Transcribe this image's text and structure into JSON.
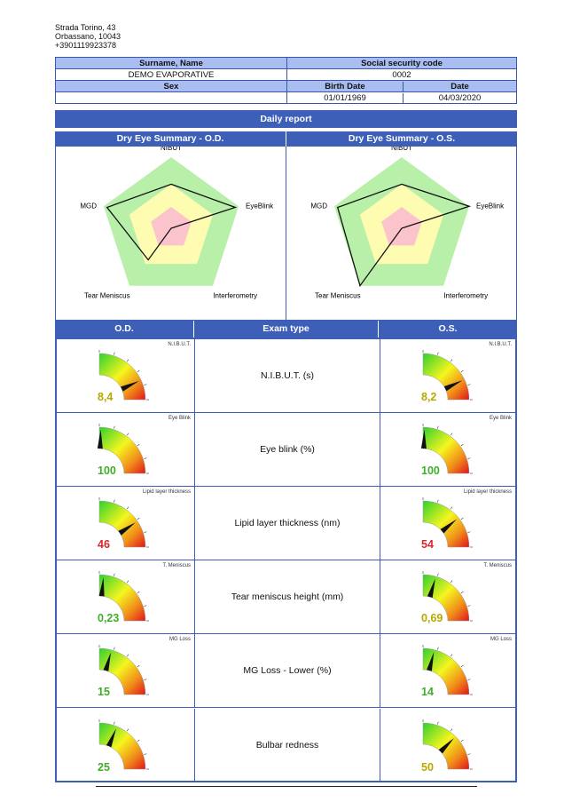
{
  "address": {
    "street": "Strada Torino, 43",
    "city": "Orbassano, 10043",
    "phone": "+3901119923378"
  },
  "patient": {
    "surname_header": "Surname, Name",
    "ssc_header": "Social security code",
    "surname_value": "DEMO EVAPORATIVE",
    "ssc_value": "0002",
    "sex_header": "Sex",
    "birth_header": "Birth Date",
    "date_header": "Date",
    "sex_value": "",
    "birth_value": "01/01/1969",
    "date_value": "04/03/2020"
  },
  "report_title": "Daily report",
  "summary": {
    "od_title": "Dry Eye Summary - O.D.",
    "os_title": "Dry Eye Summary - O.S.",
    "axes": [
      "NIBUT",
      "EyeBlink",
      "Interferometry",
      "Tear Meniscus",
      "MGD"
    ],
    "zone_colors": [
      "#b9f0a9",
      "#fdfcb0",
      "#fbc4cc"
    ],
    "od_values": [
      0.62,
      0.95,
      0.0,
      0.55,
      0.95
    ],
    "os_values": [
      0.62,
      1.0,
      0.0,
      1.0,
      0.95
    ]
  },
  "exam_table": {
    "od_header": "O.D.",
    "type_header": "Exam type",
    "os_header": "O.S.",
    "rows": [
      {
        "label": "N.I.B.U.T. (s)",
        "gauge_title": "N.I.B.U.T.",
        "od_value": "8,4",
        "os_value": "8,2",
        "od_color": "#b7a800",
        "os_color": "#b7a800",
        "od_level": 0.72,
        "os_level": 0.71
      },
      {
        "label": "Eye blink (%)",
        "gauge_title": "Eye Blink",
        "od_value": "100",
        "os_value": "100",
        "od_color": "#3fae2a",
        "os_color": "#3fae2a",
        "od_level": 0.02,
        "os_level": 0.02
      },
      {
        "label": "Lipid layer thickness (nm)",
        "gauge_title": "Lipid layer thickness",
        "od_value": "46",
        "os_value": "54",
        "od_color": "#d8262a",
        "os_color": "#d8262a",
        "od_level": 0.62,
        "os_level": 0.56
      },
      {
        "label": "Tear meniscus height (mm)",
        "gauge_title": "T. Meniscus",
        "od_value": "0,23",
        "os_value": "0,69",
        "od_color": "#3fae2a",
        "os_color": "#b7a800",
        "od_level": 0.06,
        "os_level": 0.18
      },
      {
        "label": "MG Loss - Lower (%)",
        "gauge_title": "MG Loss",
        "od_value": "15",
        "os_value": "14",
        "od_color": "#3fae2a",
        "os_color": "#3fae2a",
        "od_level": 0.17,
        "os_level": 0.16
      },
      {
        "label": "Bulbar redness",
        "gauge_title": "",
        "od_value": "25",
        "os_value": "50",
        "od_color": "#3fae2a",
        "os_color": "#b7a800",
        "od_level": 0.25,
        "os_level": 0.5
      }
    ]
  }
}
